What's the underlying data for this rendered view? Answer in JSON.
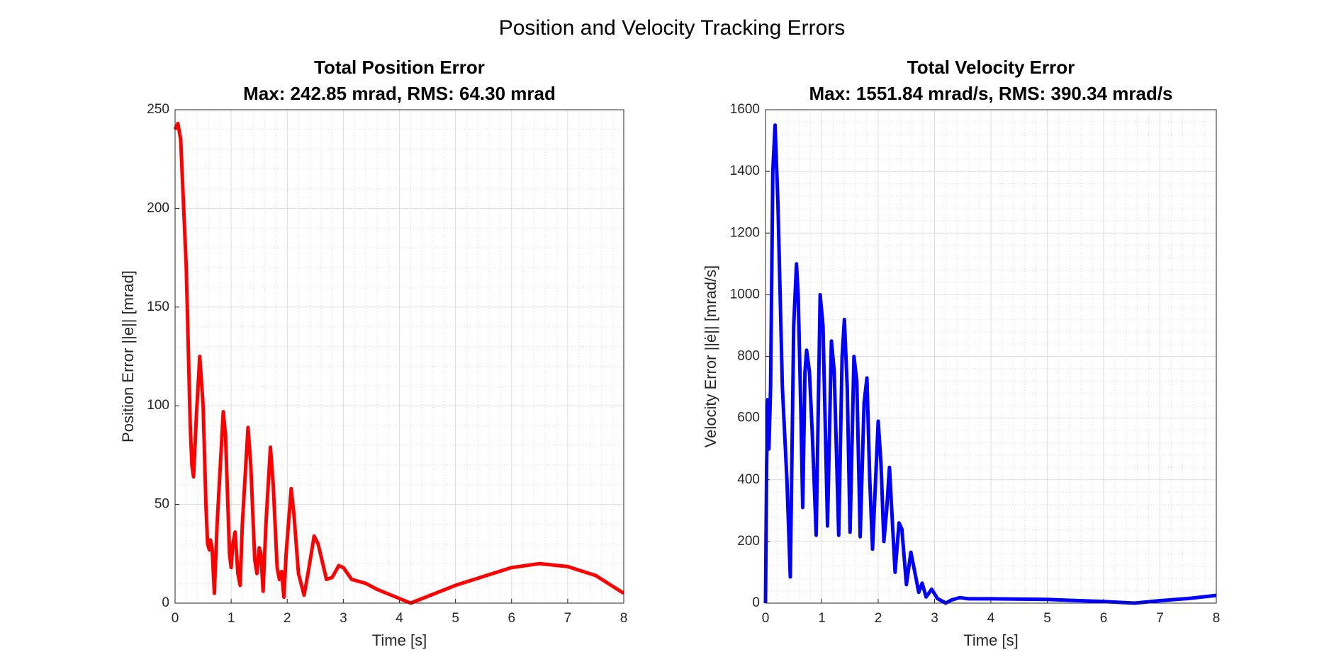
{
  "title": "Position and Velocity Tracking Errors",
  "chart_data": [
    {
      "type": "line",
      "title": "Total Position Error",
      "subtitle": "Max: 242.85 mrad, RMS: 64.30 mrad",
      "x_label": "Time [s]",
      "y_label": "Position Error ||e|| [mrad]",
      "color": "#ff0000",
      "x": [
        0,
        0.05,
        0.1,
        0.2,
        0.27,
        0.3,
        0.33,
        0.38,
        0.44,
        0.5,
        0.55,
        0.58,
        0.61,
        0.63,
        0.66,
        0.7,
        0.75,
        0.86,
        0.9,
        0.97,
        1.0,
        1.03,
        1.07,
        1.12,
        1.16,
        1.2,
        1.3,
        1.35,
        1.42,
        1.46,
        1.5,
        1.53,
        1.57,
        1.62,
        1.7,
        1.75,
        1.82,
        1.86,
        1.9,
        1.94,
        1.98,
        2.07,
        2.12,
        2.2,
        2.3,
        2.37,
        2.48,
        2.55,
        2.7,
        2.8,
        2.92,
        3.0,
        3.15,
        3.4,
        3.6,
        4.2,
        5,
        6,
        6.5,
        7,
        7.5,
        8
      ],
      "values": [
        240,
        243,
        235,
        170,
        90,
        70,
        64,
        95,
        125,
        100,
        50,
        30,
        27,
        32,
        28,
        5,
        40,
        97,
        85,
        25,
        18,
        30,
        36,
        15,
        9,
        40,
        89,
        70,
        22,
        15,
        28,
        25,
        6,
        40,
        79,
        60,
        18,
        12,
        16,
        3,
        25,
        58,
        45,
        15,
        4,
        15,
        34,
        30,
        12,
        13,
        19,
        18,
        12,
        10,
        7,
        0,
        9,
        18,
        20,
        18.5,
        14,
        5
      ],
      "xlim": [
        0,
        8
      ],
      "xticks": [
        0,
        1,
        2,
        3,
        4,
        5,
        6,
        7,
        8
      ],
      "ylim": [
        0,
        250
      ],
      "yticks": [
        0,
        50,
        100,
        150,
        200,
        250
      ],
      "grid": true,
      "minor_grid": true
    },
    {
      "type": "line",
      "title": "Total Velocity Error",
      "subtitle": "Max: 1551.84 mrad/s, RMS: 390.34 mrad/s",
      "x_label": "Time [s]",
      "y_label": "Velocity Error ||ė|| [mrad/s]",
      "color": "#0000ff",
      "x": [
        0,
        0.02,
        0.04,
        0.06,
        0.09,
        0.13,
        0.17,
        0.22,
        0.3,
        0.38,
        0.44,
        0.5,
        0.55,
        0.58,
        0.63,
        0.66,
        0.7,
        0.73,
        0.78,
        0.83,
        0.9,
        0.97,
        1.02,
        1.1,
        1.17,
        1.22,
        1.3,
        1.36,
        1.4,
        1.45,
        1.5,
        1.57,
        1.62,
        1.68,
        1.75,
        1.8,
        1.85,
        1.9,
        2.0,
        2.05,
        2.1,
        2.15,
        2.2,
        2.3,
        2.37,
        2.42,
        2.5,
        2.58,
        2.65,
        2.72,
        2.78,
        2.85,
        2.95,
        3.05,
        3.2,
        3.3,
        3.45,
        3.6,
        4,
        5,
        6,
        6.55,
        7,
        7.5,
        8
      ],
      "values": [
        0,
        450,
        660,
        500,
        700,
        1400,
        1550,
        1300,
        700,
        400,
        85,
        900,
        1100,
        1000,
        600,
        310,
        750,
        820,
        750,
        550,
        220,
        1000,
        900,
        250,
        850,
        750,
        220,
        800,
        920,
        700,
        230,
        800,
        720,
        215,
        650,
        730,
        400,
        175,
        590,
        450,
        200,
        300,
        440,
        100,
        260,
        240,
        60,
        165,
        100,
        35,
        65,
        20,
        45,
        15,
        0,
        10,
        18,
        14,
        14,
        12,
        5,
        0,
        8,
        15,
        25
      ],
      "xlim": [
        0,
        8
      ],
      "xticks": [
        0,
        1,
        2,
        3,
        4,
        5,
        6,
        7,
        8
      ],
      "ylim": [
        0,
        1600
      ],
      "yticks": [
        0,
        200,
        400,
        600,
        800,
        1000,
        1200,
        1400,
        1600
      ],
      "grid": true,
      "minor_grid": true
    }
  ]
}
